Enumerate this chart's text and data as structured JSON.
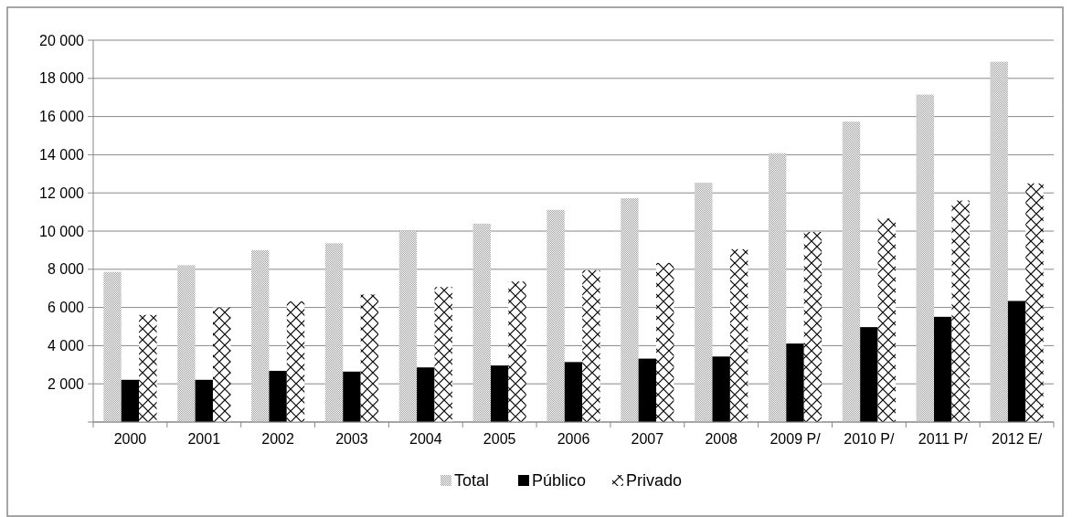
{
  "chart_data": {
    "type": "bar",
    "categories": [
      "2000",
      "2001",
      "2002",
      "2003",
      "2004",
      "2005",
      "2006",
      "2007",
      "2008",
      "2009 P/",
      "2010 P/",
      "2011 P/",
      "2012 E/"
    ],
    "series": [
      {
        "name": "Total",
        "color": "#a0a0a0",
        "values": [
          7860,
          8210,
          9000,
          9360,
          10000,
          10390,
          11110,
          11720,
          12530,
          14080,
          15730,
          17150,
          18870
        ]
      },
      {
        "name": "Público",
        "color": "#000000",
        "values": [
          2210,
          2210,
          2680,
          2640,
          2860,
          2960,
          3140,
          3320,
          3430,
          4110,
          4970,
          5510,
          6340
        ]
      },
      {
        "name": "Privado",
        "color": "#000000",
        "values": [
          5610,
          6000,
          6320,
          6680,
          7070,
          7360,
          7950,
          8330,
          9050,
          9950,
          10660,
          11600,
          12500
        ]
      }
    ],
    "ylim": [
      0,
      20000
    ],
    "yticks": [
      {
        "value": 0,
        "label": null
      },
      {
        "value": 2000,
        "label": "2 000"
      },
      {
        "value": 4000,
        "label": "4 000"
      },
      {
        "value": 6000,
        "label": "6 000"
      },
      {
        "value": 8000,
        "label": "8 000"
      },
      {
        "value": 10000,
        "label": "10 000"
      },
      {
        "value": 12000,
        "label": "12 000"
      },
      {
        "value": 14000,
        "label": "14 000"
      },
      {
        "value": 16000,
        "label": "16 000"
      },
      {
        "value": 18000,
        "label": "18 000"
      },
      {
        "value": 20000,
        "label": "20 000"
      }
    ],
    "grid": "y",
    "legend": "bottom"
  }
}
